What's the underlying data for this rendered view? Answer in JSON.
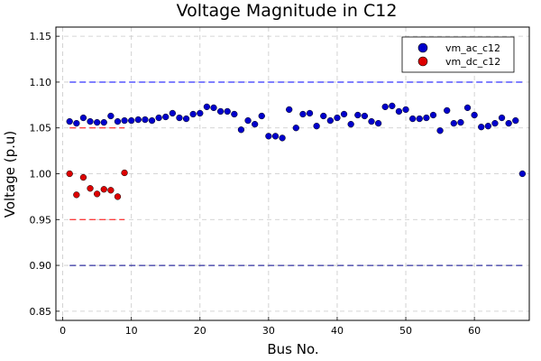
{
  "chart_data": {
    "type": "scatter",
    "title": "Voltage Magnitude in C12",
    "xlabel": "Bus No.",
    "ylabel": "Voltage (p.u)",
    "xlim": [
      -1,
      68
    ],
    "ylim": [
      0.84,
      1.16
    ],
    "xticks": [
      0,
      10,
      20,
      30,
      40,
      50,
      60
    ],
    "yticks": [
      0.85,
      0.9,
      0.95,
      1.0,
      1.05,
      1.1,
      1.15
    ],
    "grid": true,
    "legend_position": "top-right",
    "series": [
      {
        "name": "vm_ac_c12",
        "color": "#0000cc",
        "x": [
          1,
          2,
          3,
          4,
          5,
          6,
          7,
          8,
          9,
          10,
          11,
          12,
          13,
          14,
          15,
          16,
          17,
          18,
          19,
          20,
          21,
          22,
          23,
          24,
          25,
          26,
          27,
          28,
          29,
          30,
          31,
          32,
          33,
          34,
          35,
          36,
          37,
          38,
          39,
          40,
          41,
          42,
          43,
          44,
          45,
          46,
          47,
          48,
          49,
          50,
          51,
          52,
          53,
          54,
          55,
          56,
          57,
          58,
          59,
          60,
          61,
          62,
          63,
          64,
          65,
          66,
          67
        ],
        "y": [
          1.057,
          1.055,
          1.061,
          1.057,
          1.056,
          1.056,
          1.063,
          1.057,
          1.058,
          1.058,
          1.059,
          1.059,
          1.058,
          1.061,
          1.062,
          1.066,
          1.061,
          1.06,
          1.065,
          1.066,
          1.073,
          1.072,
          1.068,
          1.068,
          1.065,
          1.048,
          1.058,
          1.054,
          1.063,
          1.041,
          1.041,
          1.039,
          1.07,
          1.05,
          1.065,
          1.066,
          1.052,
          1.063,
          1.058,
          1.061,
          1.065,
          1.054,
          1.064,
          1.063,
          1.057,
          1.055,
          1.073,
          1.074,
          1.068,
          1.07,
          1.06,
          1.06,
          1.061,
          1.064,
          1.047,
          1.069,
          1.055,
          1.056,
          1.072,
          1.064,
          1.051,
          1.052,
          1.055,
          1.061,
          1.055,
          1.058,
          1.0
        ]
      },
      {
        "name": "vm_dc_c12",
        "color": "#dd0000",
        "x": [
          1,
          2,
          3,
          4,
          5,
          6,
          7,
          8,
          9
        ],
        "y": [
          1.0,
          0.977,
          0.996,
          0.984,
          0.978,
          0.983,
          0.982,
          0.975,
          1.001
        ]
      }
    ],
    "reference_lines": [
      {
        "y": 1.1,
        "x_range": [
          1,
          67
        ],
        "color": "#0000ff"
      },
      {
        "y": 0.9,
        "x_range": [
          1,
          67
        ],
        "color": "#00008b"
      },
      {
        "y": 1.05,
        "x_range": [
          1,
          9
        ],
        "color": "#ff0000"
      },
      {
        "y": 0.95,
        "x_range": [
          1,
          9
        ],
        "color": "#ff0000"
      }
    ]
  }
}
